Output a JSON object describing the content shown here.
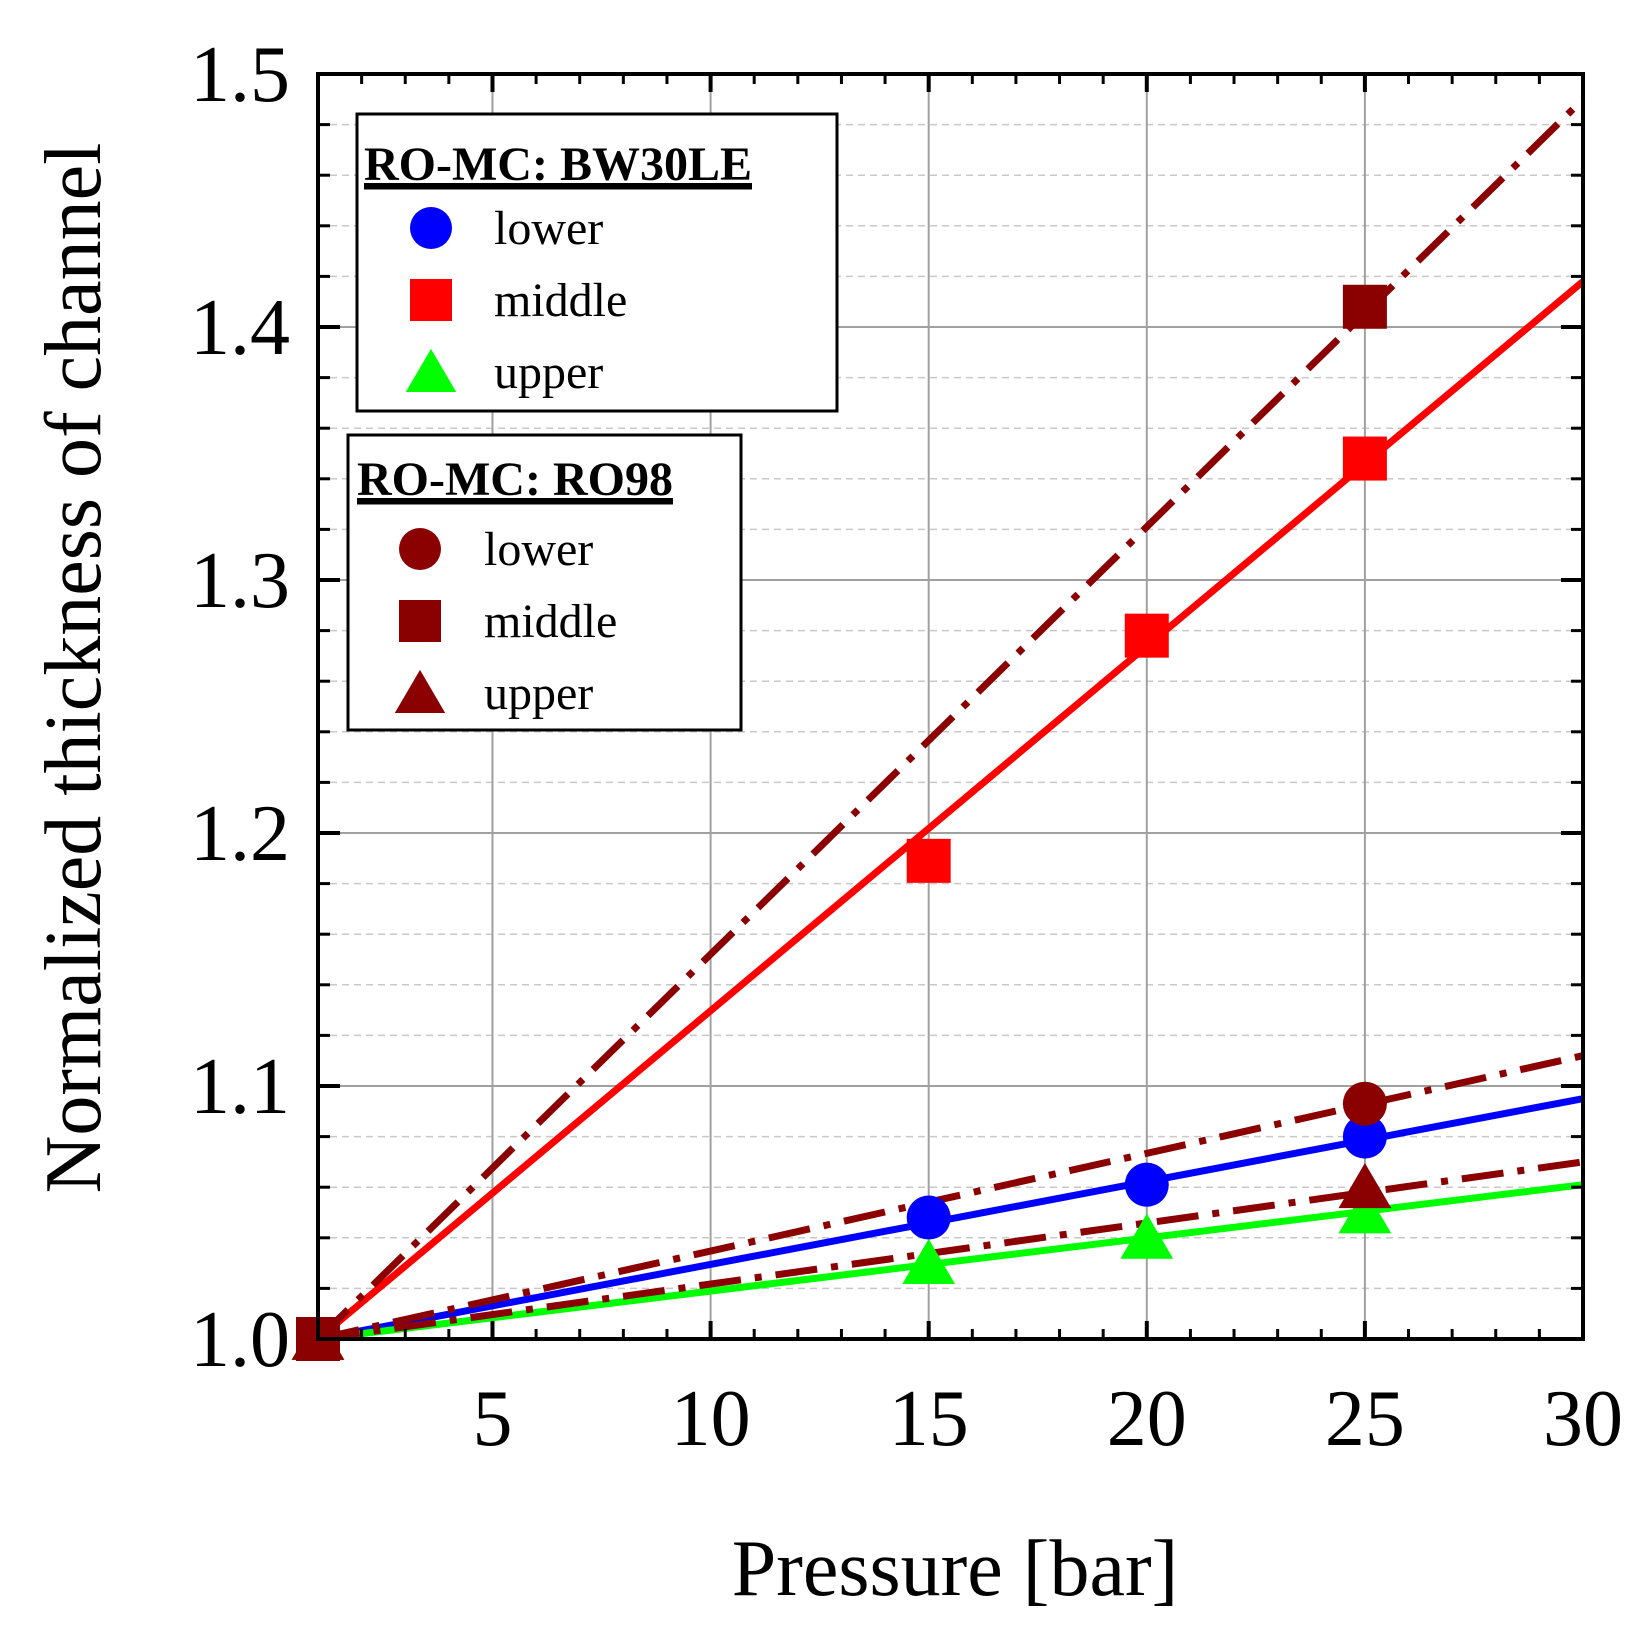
{
  "chart_data": {
    "type": "scatter",
    "xlabel": "Pressure [bar]",
    "ylabel": "Normalized thickness of channel",
    "xlim": [
      1,
      30
    ],
    "ylim": [
      1.0,
      1.5
    ],
    "x_ticks": [
      5,
      10,
      15,
      20,
      25,
      30
    ],
    "x_tick_labels": [
      "5",
      "10",
      "15",
      "20",
      "25",
      "30"
    ],
    "y_ticks": [
      1.0,
      1.1,
      1.2,
      1.3,
      1.4,
      1.5
    ],
    "y_tick_labels": [
      "1.0",
      "1.1",
      "1.2",
      "1.3",
      "1.4",
      "1.5"
    ],
    "grid": true,
    "legends": [
      {
        "title": "RO-MC: BW30LE",
        "entries": [
          {
            "label": "lower",
            "marker": "circle",
            "color": "#0000ff"
          },
          {
            "label": "middle",
            "marker": "square",
            "color": "#ff0000"
          },
          {
            "label": "upper",
            "marker": "triangle",
            "color": "#00ff00"
          }
        ]
      },
      {
        "title": "RO-MC: RO98",
        "entries": [
          {
            "label": "lower",
            "marker": "circle",
            "color": "#8b0000"
          },
          {
            "label": "middle",
            "marker": "square",
            "color": "#8b0000"
          },
          {
            "label": "upper",
            "marker": "triangle",
            "color": "#8b0000"
          }
        ]
      }
    ],
    "series": [
      {
        "group": "RO-MC: BW30LE",
        "name": "lower",
        "marker": "circle",
        "color": "#0000ff",
        "x": [
          1,
          15,
          20,
          25
        ],
        "y": [
          1.0,
          1.048,
          1.061,
          1.08
        ]
      },
      {
        "group": "RO-MC: BW30LE",
        "name": "middle",
        "marker": "square",
        "color": "#ff0000",
        "x": [
          1,
          15,
          20,
          25
        ],
        "y": [
          1.0,
          1.189,
          1.278,
          1.348
        ]
      },
      {
        "group": "RO-MC: BW30LE",
        "name": "upper",
        "marker": "triangle",
        "color": "#00ff00",
        "x": [
          1,
          15,
          20,
          25
        ],
        "y": [
          1.0,
          1.03,
          1.04,
          1.05
        ]
      },
      {
        "group": "RO-MC: RO98",
        "name": "lower",
        "marker": "circle",
        "color": "#8b0000",
        "x": [
          1,
          25
        ],
        "y": [
          1.0,
          1.093
        ]
      },
      {
        "group": "RO-MC: RO98",
        "name": "middle",
        "marker": "square",
        "color": "#8b0000",
        "x": [
          1,
          25
        ],
        "y": [
          1.0,
          1.408
        ]
      },
      {
        "group": "RO-MC: RO98",
        "name": "upper",
        "marker": "triangle",
        "color": "#8b0000",
        "x": [
          1,
          25
        ],
        "y": [
          1.0,
          1.06
        ]
      }
    ],
    "fit_lines": [
      {
        "for": "BW30LE lower",
        "style": "solid",
        "color": "#0000ff",
        "x": [
          1,
          30
        ],
        "y": [
          1.0,
          1.095
        ]
      },
      {
        "for": "BW30LE middle",
        "style": "solid",
        "color": "#ff0000",
        "x": [
          1,
          30
        ],
        "y": [
          1.0,
          1.418
        ]
      },
      {
        "for": "BW30LE upper",
        "style": "solid",
        "color": "#00ff00",
        "x": [
          1,
          30
        ],
        "y": [
          1.0,
          1.061
        ]
      },
      {
        "for": "RO98 lower",
        "style": "dash-dot",
        "color": "#8b0000",
        "x": [
          1,
          30
        ],
        "y": [
          1.0,
          1.112
        ]
      },
      {
        "for": "RO98 middle",
        "style": "dash-dot",
        "color": "#8b0000",
        "x": [
          1,
          30
        ],
        "y": [
          1.0,
          1.49
        ]
      },
      {
        "for": "RO98 upper",
        "style": "dash-dot",
        "color": "#8b0000",
        "x": [
          1,
          30
        ],
        "y": [
          1.0,
          1.07
        ]
      }
    ]
  }
}
